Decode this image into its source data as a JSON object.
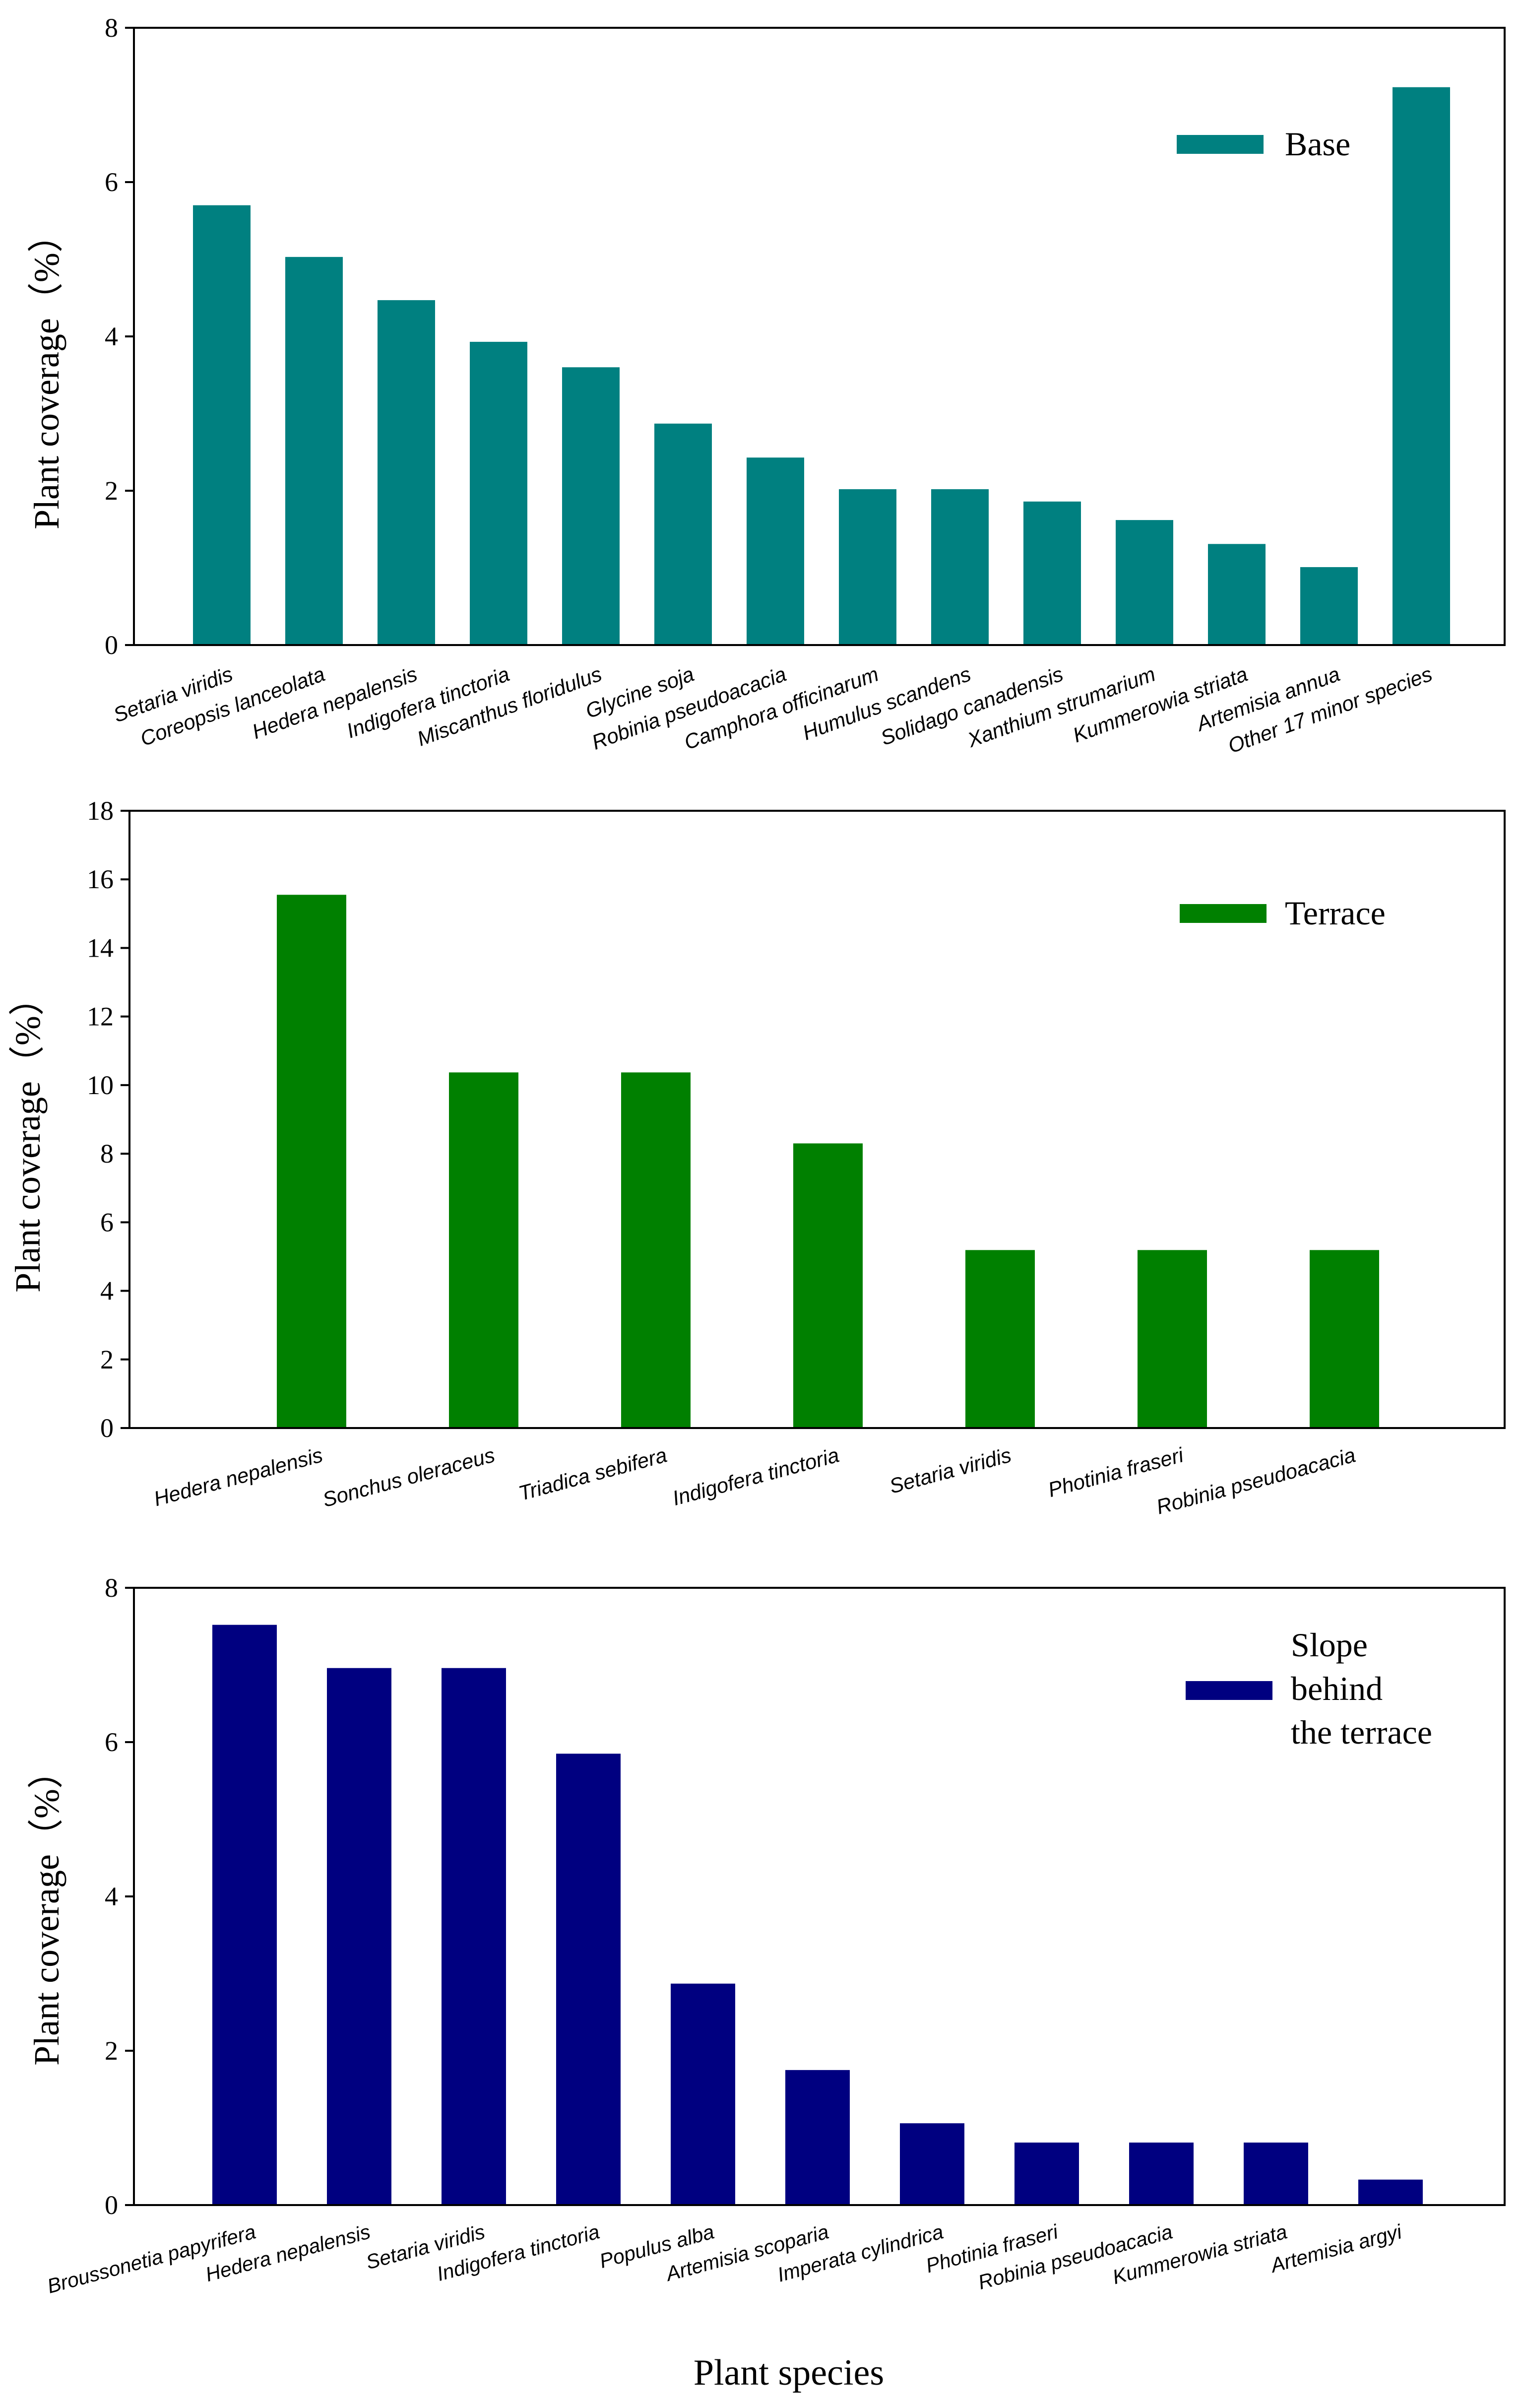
{
  "chart_data": [
    {
      "type": "bar",
      "ylabel": "Plant coverage（%）",
      "ylim": [
        0,
        8
      ],
      "yticks": [
        0,
        2,
        4,
        6,
        8
      ],
      "color": "#008080",
      "legend": "Base",
      "legend_position": "top-right",
      "categories": [
        "Setaria viridis",
        "Coreopsis lanceolata",
        "Hedera nepalensis",
        "Indigofera tinctoria",
        "Miscanthus floridulus",
        "Glycine soja",
        "Robinia pseudoacacia",
        "Camphora officinarum",
        "Humulus scandens",
        "Solidago canadensis",
        "Xanthium strumarium",
        "Kummerowia striata",
        "Artemisia annua",
        "Other 17 minor species"
      ],
      "values": [
        5.7,
        5.03,
        4.47,
        3.93,
        3.6,
        2.87,
        2.43,
        2.02,
        2.02,
        1.86,
        1.62,
        1.31,
        1.01,
        7.23
      ]
    },
    {
      "type": "bar",
      "ylabel": "Plant coverage（%）",
      "ylim": [
        0,
        18
      ],
      "yticks": [
        0,
        2,
        4,
        6,
        8,
        10,
        12,
        14,
        16,
        18
      ],
      "color": "#008000",
      "legend": "Terrace",
      "legend_position": "top-right",
      "categories": [
        "Hedera nepalensis",
        "Sonchus oleraceus",
        "Triadica sebifera",
        "Indigofera tinctoria",
        "Setaria viridis",
        "Photinia fraseri",
        "Robinia pseudoacacia"
      ],
      "values": [
        15.55,
        10.37,
        10.37,
        8.3,
        5.19,
        5.19,
        5.19
      ]
    },
    {
      "type": "bar",
      "ylabel": "Plant coverage（%）",
      "xlabel": "Plant species",
      "ylim": [
        0,
        8
      ],
      "yticks": [
        0,
        2,
        4,
        6,
        8
      ],
      "color": "#000080",
      "legend": [
        "Slope",
        "behind",
        "the terrace"
      ],
      "legend_position": "top-right",
      "categories": [
        "Broussonetia papyrifera",
        "Hedera nepalensis",
        "Setaria viridis",
        "Indigofera tinctoria",
        "Populus alba",
        "Artemisia scoparia",
        "Imperata cylindrica",
        "Photinia fraseri",
        "Robinia pseudoacacia",
        "Kummerowia striata",
        "Artemisia argyi"
      ],
      "values": [
        7.52,
        6.96,
        6.96,
        5.85,
        2.87,
        1.75,
        1.06,
        0.81,
        0.81,
        0.81,
        0.33
      ]
    }
  ]
}
